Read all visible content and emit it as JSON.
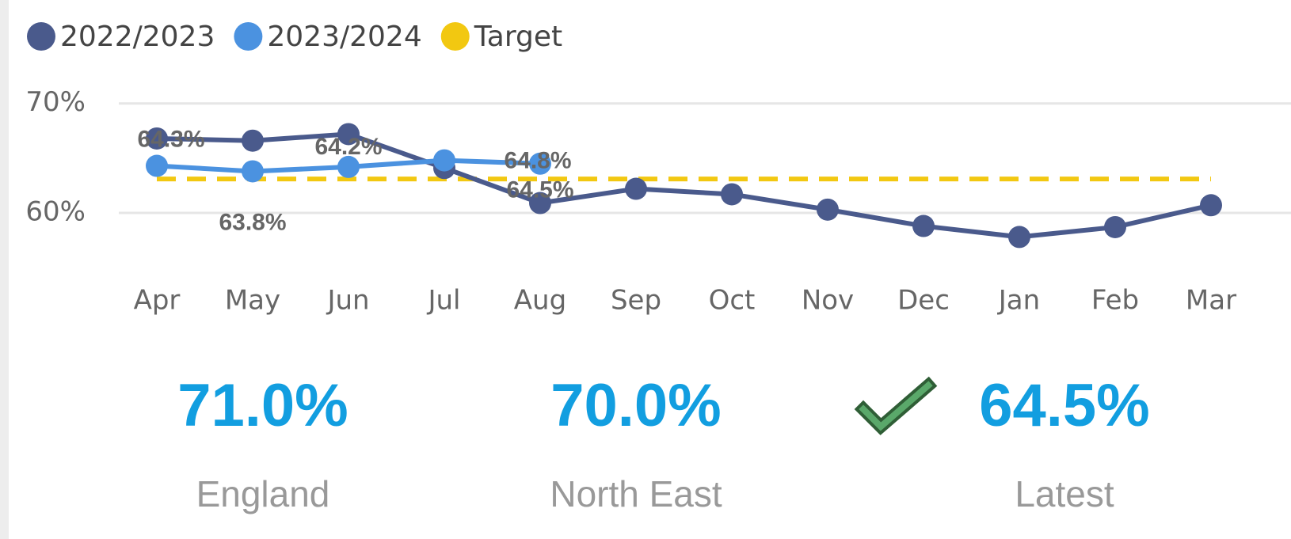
{
  "chart_data": {
    "type": "line",
    "categories": [
      "Apr",
      "May",
      "Jun",
      "Jul",
      "Aug",
      "Sep",
      "Oct",
      "Nov",
      "Dec",
      "Jan",
      "Feb",
      "Mar"
    ],
    "series": [
      {
        "name": "2022/2023",
        "color": "#4a5a8c",
        "values": [
          66.8,
          66.6,
          67.2,
          64.1,
          60.9,
          62.2,
          61.7,
          60.3,
          58.8,
          57.8,
          58.7,
          60.7
        ]
      },
      {
        "name": "2023/2024",
        "color": "#4b92e0",
        "values": [
          64.3,
          63.8,
          64.2,
          64.8,
          64.5,
          null,
          null,
          null,
          null,
          null,
          null,
          null
        ],
        "value_labels": [
          "64.3%",
          "63.8%",
          "64.2%",
          "64.8%",
          "64.5%",
          null,
          null,
          null,
          null,
          null,
          null,
          null
        ]
      },
      {
        "name": "Target",
        "color": "#f2c811",
        "dashed": true,
        "values": [
          63.1,
          63.1,
          63.1,
          63.1,
          63.1,
          63.1,
          63.1,
          63.1,
          63.1,
          63.1,
          63.1,
          63.1
        ]
      }
    ],
    "ylim": [
      54.5,
      71.5
    ],
    "yticks": [
      {
        "value": 60,
        "label": "60%"
      },
      {
        "value": 70,
        "label": "70%"
      }
    ],
    "grid": true,
    "legend": "top-left"
  },
  "cards": [
    {
      "value": "71.0%",
      "label": "England"
    },
    {
      "value": "70.0%",
      "label": "North East"
    },
    {
      "value": "64.5%",
      "label": "Latest",
      "check": true
    }
  ]
}
